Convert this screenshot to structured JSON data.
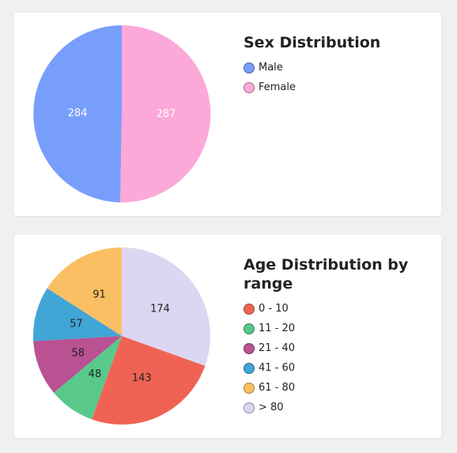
{
  "sex_card": {
    "title": "Sex Distribution"
  },
  "age_card": {
    "title": "Age Distribution by range"
  },
  "chart_data": [
    {
      "type": "pie",
      "title": "Sex Distribution",
      "labels": [
        "Male",
        "Female"
      ],
      "values": [
        284,
        287
      ],
      "colors": [
        "#789efc",
        "#fca8d8"
      ],
      "label_colors": [
        "#ffffff",
        "#ffffff"
      ],
      "legend_position": "right"
    },
    {
      "type": "pie",
      "title": "Age Distribution by range",
      "labels": [
        "0 - 10",
        "11 - 20",
        "21 - 40",
        "41 - 60",
        "61 - 80",
        "> 80"
      ],
      "values": [
        143,
        48,
        58,
        57,
        91,
        174
      ],
      "colors": [
        "#f06354",
        "#58c98b",
        "#b95193",
        "#41a5d6",
        "#fbbf63",
        "#dcd6f2"
      ],
      "label_colors": [
        "#222222",
        "#222222",
        "#222222",
        "#222222",
        "#222222",
        "#222222"
      ],
      "legend_position": "right"
    }
  ]
}
